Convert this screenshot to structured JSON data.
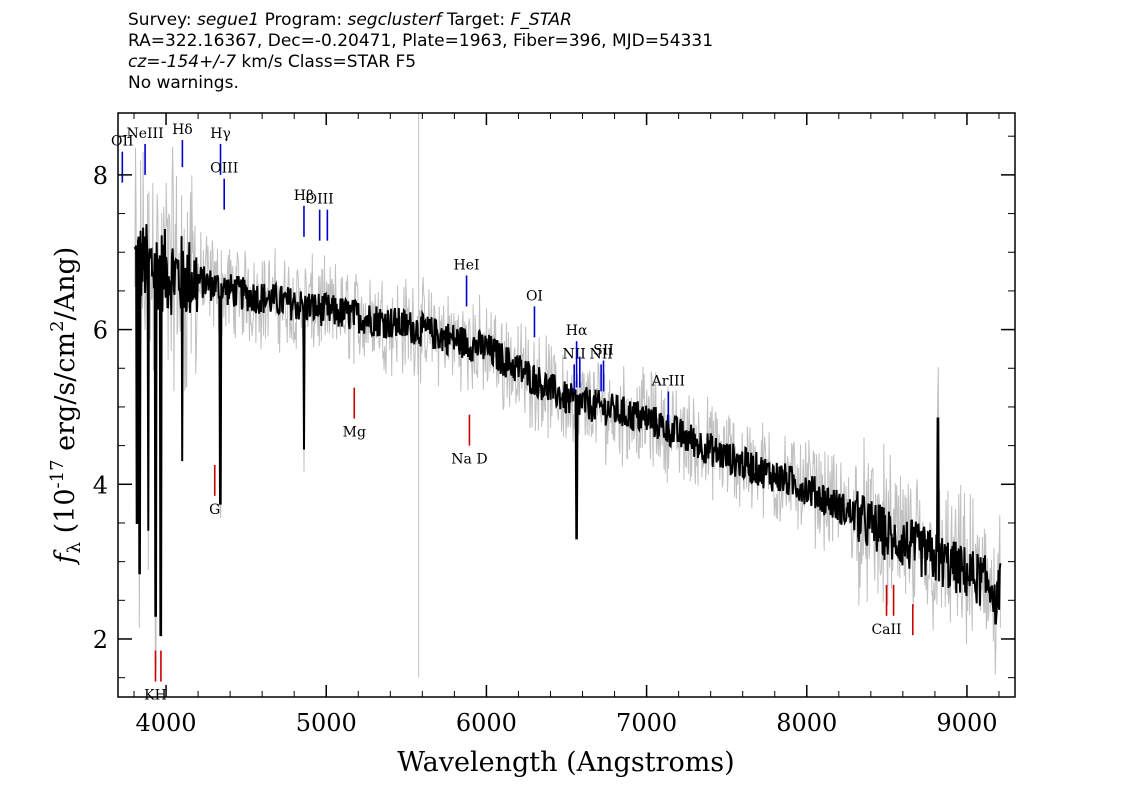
{
  "header": {
    "line1": {
      "survey_key": "Survey:",
      "survey_value": "segue1",
      "program_key": "Program:",
      "program_value": "segclusterf",
      "target_key": "Target:",
      "target_value": "F_STAR"
    },
    "line2": "RA=322.16367, Dec=-0.20471, Plate=1963, Fiber=396, MJD=54331",
    "line3": {
      "cz_key": "cz=",
      "cz_value": "-154+/-7",
      "cz_rest": " km/s Class=STAR F5"
    },
    "line4": "No warnings."
  },
  "chart_data": {
    "type": "line",
    "xlabel": "Wavelength (Angstroms)",
    "ylabel_parts": [
      "f",
      "λ",
      " (10",
      "-17",
      " erg/s/cm",
      "2",
      "/Ang)"
    ],
    "xlim": [
      3700,
      9300
    ],
    "ylim": [
      1.25,
      8.8
    ],
    "x_ticks": [
      4000,
      5000,
      6000,
      7000,
      8000,
      9000
    ],
    "x_tick_labels": [
      "4000",
      "5000",
      "6000",
      "7000",
      "8000",
      "9000"
    ],
    "y_ticks": [
      2,
      4,
      6,
      8
    ],
    "y_tick_labels": [
      "2",
      "4",
      "6",
      "8"
    ],
    "grid": false,
    "colors": {
      "flux": "#000000",
      "error": "#c0c0c0",
      "emission": "#0000cc",
      "absorption": "#cc0000"
    },
    "series": [
      {
        "role": "flux",
        "continuum_x": [
          3800,
          4000,
          4500,
          5000,
          5500,
          6000,
          6500,
          7000,
          7500,
          8000,
          8500,
          9000,
          9200
        ],
        "continuum_y": [
          6.9,
          6.75,
          6.45,
          6.25,
          6.05,
          5.75,
          5.1,
          4.85,
          4.35,
          3.95,
          3.35,
          2.85,
          2.65
        ],
        "features": [
          {
            "x": 3820,
            "y": 3.5
          },
          {
            "x": 3835,
            "y": 2.85
          },
          {
            "x": 3889,
            "y": 3.4
          },
          {
            "x": 3934,
            "y": 2.3
          },
          {
            "x": 3968,
            "y": 2.05
          },
          {
            "x": 4101,
            "y": 4.3
          },
          {
            "x": 4340,
            "y": 3.75
          },
          {
            "x": 4861,
            "y": 4.45
          },
          {
            "x": 6563,
            "y": 3.3
          },
          {
            "x": 8498,
            "y": 3.3
          },
          {
            "x": 8542,
            "y": 3.2
          },
          {
            "x": 8662,
            "y": 3.25
          },
          {
            "x": 8820,
            "y": 4.85
          },
          {
            "x": 9180,
            "y": 2.2
          }
        ]
      },
      {
        "role": "error",
        "sky_spike_x": 5577,
        "sky_spike_ymin": 1.5
      }
    ],
    "emission_lines": [
      {
        "label": "OII",
        "x": 3727,
        "y_top": 8.3,
        "y_bottom": 7.9
      },
      {
        "label": "NeIII",
        "x": 3869,
        "y_top": 8.4,
        "y_bottom": 8.0
      },
      {
        "label": "Hδ",
        "x": 4102,
        "y_top": 8.45,
        "y_bottom": 8.1
      },
      {
        "label": "Hγ",
        "x": 4340,
        "y_top": 8.4,
        "y_bottom": 8.0
      },
      {
        "label": "OIII",
        "x": 4363,
        "y_top": 7.95,
        "y_bottom": 7.55
      },
      {
        "label": "Hβ",
        "x": 4861,
        "y_top": 7.6,
        "y_bottom": 7.2
      },
      {
        "label": "OIII",
        "x": 4959,
        "y_top": 7.55,
        "y_bottom": 7.15
      },
      {
        "label": "",
        "x": 5007,
        "y_top": 7.55,
        "y_bottom": 7.15
      },
      {
        "label": "HeI",
        "x": 5876,
        "y_top": 6.7,
        "y_bottom": 6.3
      },
      {
        "label": "OI",
        "x": 6300,
        "y_top": 6.3,
        "y_bottom": 5.9
      },
      {
        "label": "NII",
        "x": 6548,
        "y_top": 5.55,
        "y_bottom": 5.2
      },
      {
        "label": "Hα",
        "x": 6563,
        "y_top": 5.85,
        "y_bottom": 5.25
      },
      {
        "label": "",
        "x": 6583,
        "y_top": 5.65,
        "y_bottom": 5.25
      },
      {
        "label": "NII",
        "x": 6716,
        "y_top": 5.55,
        "y_bottom": 5.2
      },
      {
        "label": "SII",
        "x": 6731,
        "y_top": 5.6,
        "y_bottom": 5.2
      },
      {
        "label": "ArIII",
        "x": 7136,
        "y_top": 5.2,
        "y_bottom": 4.8
      }
    ],
    "absorption_lines": [
      {
        "label": "KH",
        "x": 3934,
        "y_top": 1.85,
        "y_bottom": 1.45
      },
      {
        "label": "",
        "x": 3968,
        "y_top": 1.85,
        "y_bottom": 1.45
      },
      {
        "label": "G",
        "x": 4304,
        "y_top": 4.25,
        "y_bottom": 3.85
      },
      {
        "label": "Mg",
        "x": 5175,
        "y_top": 5.25,
        "y_bottom": 4.85
      },
      {
        "label": "Na D",
        "x": 5894,
        "y_top": 4.9,
        "y_bottom": 4.5
      },
      {
        "label": "CaII",
        "x": 8498,
        "y_top": 2.7,
        "y_bottom": 2.3
      },
      {
        "label": "",
        "x": 8542,
        "y_top": 2.7,
        "y_bottom": 2.3
      },
      {
        "label": "",
        "x": 8662,
        "y_top": 2.45,
        "y_bottom": 2.05
      }
    ]
  }
}
